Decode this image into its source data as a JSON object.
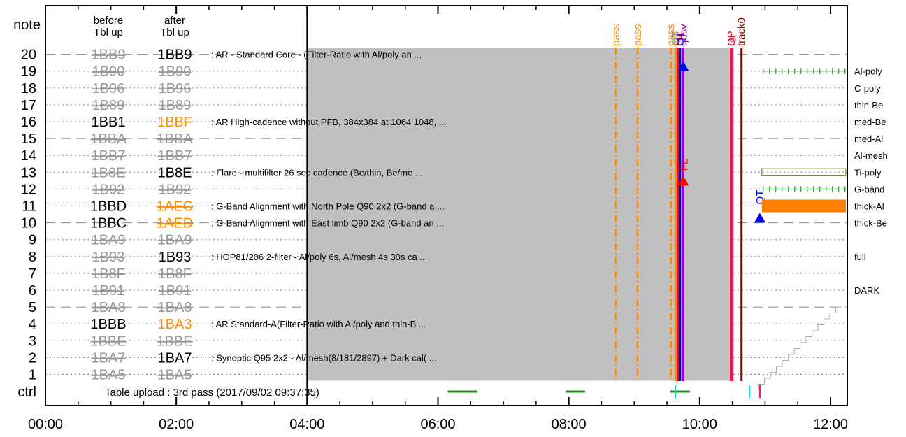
{
  "chart_data": {
    "type": "timeline",
    "title": "",
    "x_ticks": [
      "00:00",
      "02:00",
      "04:00",
      "06:00",
      "08:00",
      "10:00",
      "12:00"
    ],
    "x_range_hours": [
      0,
      12.3
    ],
    "y_axis_label": "note",
    "ctrl_label": "ctrl",
    "col_headers": {
      "before": [
        "before",
        "Tbl up"
      ],
      "after": [
        "after",
        "Tbl up"
      ]
    },
    "rows": [
      {
        "note": "20",
        "before": "1BB9",
        "before_active": false,
        "after": "1BB9",
        "after_status": "active",
        "desc": ": AR - Standard Core - (Filter-Ratio with Al/poly an ...",
        "right": ""
      },
      {
        "note": "19",
        "before": "1B90",
        "before_active": false,
        "after": "1B90",
        "after_status": "inactive",
        "desc": "",
        "right": "Al-poly"
      },
      {
        "note": "18",
        "before": "1B96",
        "before_active": false,
        "after": "1B96",
        "after_status": "inactive",
        "desc": "",
        "right": "C-poly"
      },
      {
        "note": "17",
        "before": "1B89",
        "before_active": false,
        "after": "1B89",
        "after_status": "inactive",
        "desc": "",
        "right": "thin-Be"
      },
      {
        "note": "16",
        "before": "1BB1",
        "before_active": true,
        "after": "1BBF",
        "after_status": "changed",
        "desc": ": AR High-cadence without PFB, 384x384 at 1064 1048, ...",
        "right": "med-Be"
      },
      {
        "note": "15",
        "before": "1BBA",
        "before_active": false,
        "after": "1BBA",
        "after_status": "inactive",
        "desc": "",
        "right": "med-Al"
      },
      {
        "note": "14",
        "before": "1BB7",
        "before_active": false,
        "after": "1BB7",
        "after_status": "inactive",
        "desc": "",
        "right": "Al-mesh"
      },
      {
        "note": "13",
        "before": "1B8E",
        "before_active": false,
        "after": "1B8E",
        "after_status": "active",
        "desc": ": Flare - multifilter 26 sec cadence (Be/thin, Be/me ...",
        "right": "Ti-poly"
      },
      {
        "note": "12",
        "before": "1B92",
        "before_active": false,
        "after": "1B92",
        "after_status": "inactive",
        "desc": "",
        "right": "G-band"
      },
      {
        "note": "11",
        "before": "1BBD",
        "before_active": true,
        "after": "1AEC",
        "after_status": "changed",
        "desc": ": G-Band Alignment with North Pole Q90 2x2 (G-band a ...",
        "right": "thick-Al"
      },
      {
        "note": "10",
        "before": "1BBC",
        "before_active": true,
        "after": "1AED",
        "after_status": "changed",
        "desc": ": G-Band Alignment with East limb Q90 2x2 (G-band an ...",
        "right": "thick-Be"
      },
      {
        "note": "9",
        "before": "1BA9",
        "before_active": false,
        "after": "1BA9",
        "after_status": "inactive",
        "desc": "",
        "right": ""
      },
      {
        "note": "8",
        "before": "1B93",
        "before_active": false,
        "after": "1B93",
        "after_status": "active",
        "desc": ": HOP81/206 2-filter - Al/poly 6s, Al/mesh 4s 30s ca ...",
        "right": "full"
      },
      {
        "note": "7",
        "before": "1B8F",
        "before_active": false,
        "after": "1B8F",
        "after_status": "inactive",
        "desc": "",
        "right": ""
      },
      {
        "note": "6",
        "before": "1B91",
        "before_active": false,
        "after": "1B91",
        "after_status": "inactive",
        "desc": "",
        "right": "DARK"
      },
      {
        "note": "5",
        "before": "1BA8",
        "before_active": false,
        "after": "1BA8",
        "after_status": "inactive",
        "desc": "",
        "right": ""
      },
      {
        "note": "4",
        "before": "1BBB",
        "before_active": true,
        "after": "1BA3",
        "after_status": "changed",
        "desc": ": AR Standard-A(Filter-Ratio with Al/poly and thin-B ...",
        "right": ""
      },
      {
        "note": "3",
        "before": "1BBE",
        "before_active": false,
        "after": "1BBE",
        "after_status": "inactive",
        "desc": "",
        "right": ""
      },
      {
        "note": "2",
        "before": "1BA7",
        "before_active": false,
        "after": "1BA7",
        "after_status": "active",
        "desc": ": Synoptic Q95 2x2 - Al/mesh(8/181/2897) + Dark cal( ...",
        "right": ""
      },
      {
        "note": "1",
        "before": "1BA5",
        "before_active": false,
        "after": "1BA5",
        "after_status": "inactive",
        "desc": "",
        "right": ""
      }
    ],
    "dashed_rows": [
      "20",
      "15",
      "10",
      "5"
    ],
    "shaded_block": {
      "start_h": 4.0,
      "end_h": 10.5,
      "row_top": "20",
      "row_bottom": "1"
    },
    "ctrl_text": "Table upload : 3rd pass (2017/09/02 09:37:35)",
    "events": [
      {
        "label": "pass",
        "t_h": 8.72,
        "color": "#ff8c00",
        "style": "dashdot"
      },
      {
        "label": "pass",
        "t_h": 9.05,
        "color": "#ff8c00",
        "style": "dashdot"
      },
      {
        "label": "pass",
        "t_h": 9.56,
        "color": "#ff8c00",
        "style": "dashdot"
      },
      {
        "label": "QT",
        "t_h": 9.63,
        "color": "#00cccc",
        "style": "dashdot"
      },
      {
        "label": "top",
        "t_h": 9.64,
        "color": "#ff8c00",
        "style": "solid"
      },
      {
        "label": "FL",
        "t_h": 9.67,
        "color": "#ff0000",
        "style": "solid"
      },
      {
        "label": "QT",
        "t_h": 9.7,
        "color": "#0000ee",
        "style": "solid"
      },
      {
        "label": "qdsv",
        "t_h": 9.75,
        "color": "#9900cc",
        "style": "solid"
      },
      {
        "label": "OP",
        "t_h": 10.48,
        "color": "#ff0000",
        "style": "solid"
      },
      {
        "label": "rst",
        "t_h": 10.5,
        "color": "#ee1177",
        "style": "solid"
      },
      {
        "label": "track0",
        "t_h": 10.64,
        "color": "#8b0000",
        "style": "solid"
      }
    ],
    "ctrl_marks": [
      {
        "start_h": 6.15,
        "end_h": 6.6,
        "color": "#228b22"
      },
      {
        "start_h": 7.95,
        "end_h": 8.25,
        "color": "#228b22"
      },
      {
        "start_h": 9.55,
        "end_h": 9.85,
        "color": "#228b22"
      },
      {
        "start_h": 9.63,
        "end_h": 9.63,
        "color": "#00dddd"
      },
      {
        "start_h": 10.76,
        "end_h": 10.76,
        "color": "#00dddd"
      },
      {
        "start_h": 10.92,
        "end_h": 10.92,
        "color": "#ee1177"
      }
    ],
    "qt_labels": [
      {
        "label": "FL",
        "t_h": 9.76,
        "row": "13.5",
        "color": "#ff0000"
      },
      {
        "label": "QT",
        "t_h": 10.92,
        "row": "11.5",
        "color": "#0000ee"
      }
    ],
    "markers": [
      {
        "t_h": 9.75,
        "row": "19.3",
        "color": "#0000ee"
      },
      {
        "t_h": 9.75,
        "row": "12.5",
        "color": "#ff0000"
      },
      {
        "t_h": 10.92,
        "row": "10.3",
        "color": "#0000ee"
      }
    ],
    "right_strip": [
      {
        "row": "19",
        "kind": "ticks",
        "color": "#228b22",
        "start_h": 10.95
      },
      {
        "row": "13",
        "kind": "box",
        "color": "#808000",
        "start_h": 10.95
      },
      {
        "row": "12",
        "kind": "ticks",
        "color": "#228b22",
        "start_h": 10.95
      },
      {
        "row": "11",
        "kind": "bar",
        "color": "#ff8000",
        "start_h": 10.95
      }
    ],
    "colors": {
      "active": "#000000",
      "inactive": "#999999",
      "changed": "#ff8c00",
      "shade": "#c0c0c0",
      "dots": "#888888"
    }
  }
}
